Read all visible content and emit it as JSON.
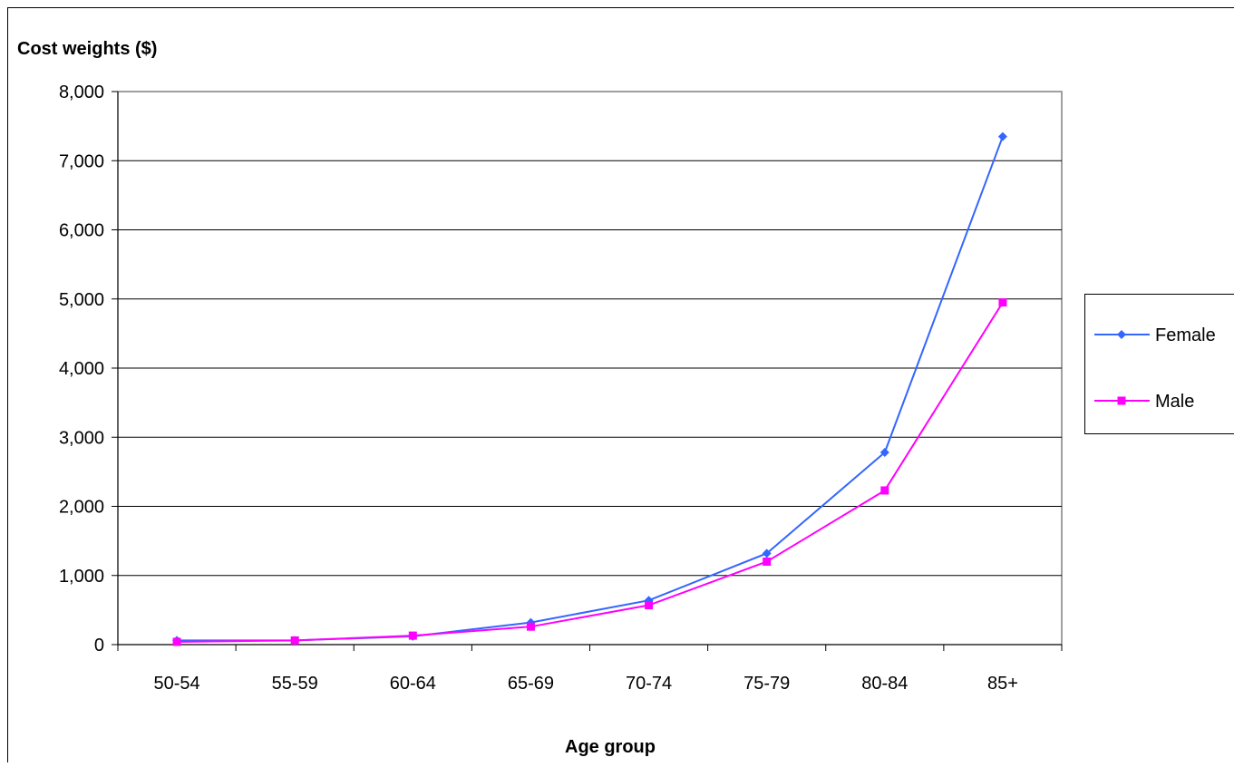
{
  "chart_data": {
    "type": "line",
    "ylabel": "Cost weights ($)",
    "xlabel": "Age group",
    "categories": [
      "50-54",
      "55-59",
      "60-64",
      "65-69",
      "70-74",
      "75-79",
      "80-84",
      "85+"
    ],
    "ylim": [
      0,
      8000
    ],
    "yticks": [
      0,
      1000,
      2000,
      3000,
      4000,
      5000,
      6000,
      7000,
      8000
    ],
    "ytick_labels": [
      "0",
      "1,000",
      "2,000",
      "3,000",
      "4,000",
      "5,000",
      "6,000",
      "7,000",
      "8,000"
    ],
    "grid": true,
    "legend_position": "right",
    "series": [
      {
        "name": "Female",
        "color": "#3366ff",
        "marker": "diamond",
        "values": [
          60,
          60,
          120,
          320,
          640,
          1320,
          2780,
          7350
        ]
      },
      {
        "name": "Male",
        "color": "#ff00ff",
        "marker": "square",
        "values": [
          40,
          60,
          130,
          260,
          570,
          1200,
          2230,
          4950
        ]
      }
    ]
  }
}
